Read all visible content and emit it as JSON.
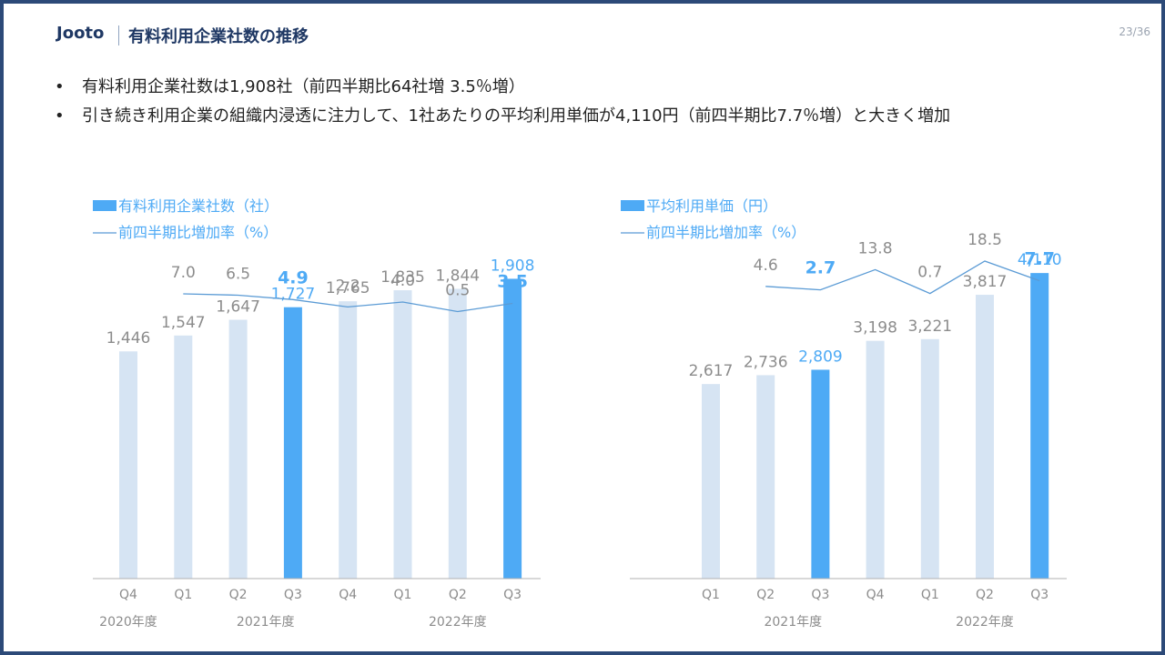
{
  "header": {
    "brand": "Jooto",
    "title": "有料利用企業社数の推移",
    "page": "23/36"
  },
  "bullets": [
    "有料利用企業社数は1,908社（前四半期比64社増 3.5％増）",
    "引き続き利用企業の組織内浸透に注力して、1社あたりの平均利用単価が4,110円（前四半期比7.7％増）と大きく増加"
  ],
  "colors": {
    "bar_light": "#d6e4f3",
    "bar_highlight": "#4eaaf5",
    "line": "#5b9bd5",
    "label_gray": "#8c8c8c",
    "label_highlight": "#4eaaf5",
    "axis": "#b0b0b0"
  },
  "chart_data": [
    {
      "type": "bar",
      "legend": {
        "bar_label": "有料利用企業社数（社）",
        "line_label": "前四半期比増加率（%）",
        "placement": "top-left"
      },
      "categories": [
        "Q4",
        "Q1",
        "Q2",
        "Q3",
        "Q4",
        "Q1",
        "Q2",
        "Q3"
      ],
      "year_groups": [
        {
          "label": "2020年度",
          "start": 0,
          "end": 0
        },
        {
          "label": "2021年度",
          "start": 1,
          "end": 4
        },
        {
          "label": "2022年度",
          "start": 5,
          "end": 7
        }
      ],
      "series": [
        {
          "name": "有料利用企業社数（社）",
          "type": "bar",
          "values": [
            1446,
            1547,
            1647,
            1727,
            1765,
            1835,
            1844,
            1908
          ],
          "labels": [
            "1,446",
            "1,547",
            "1,647",
            "1,727",
            "1,765",
            "1,835",
            "1,844",
            "1,908"
          ],
          "highlight": [
            3,
            7
          ]
        },
        {
          "name": "前四半期比増加率（%）",
          "type": "line",
          "values": [
            null,
            7.0,
            6.5,
            4.9,
            2.2,
            4.0,
            0.5,
            3.5
          ],
          "labels": [
            "",
            "7.0",
            "6.5",
            "4.9",
            "2.2",
            "4.0",
            "0.5",
            "3.5"
          ],
          "highlight": [
            3,
            7
          ]
        }
      ],
      "ylim": [
        0,
        2200
      ],
      "line_ylim": [
        -10,
        10
      ],
      "grid": false
    },
    {
      "type": "bar",
      "legend": {
        "bar_label": "平均利用単価（円）",
        "line_label": "前四半期比増加率（%）",
        "placement": "top-left"
      },
      "categories": [
        "Q1",
        "Q2",
        "Q3",
        "Q4",
        "Q1",
        "Q2",
        "Q3"
      ],
      "year_groups": [
        {
          "label": "2021年度",
          "start": 0,
          "end": 3
        },
        {
          "label": "2022年度",
          "start": 4,
          "end": 6
        }
      ],
      "series": [
        {
          "name": "平均利用単価（円）",
          "type": "bar",
          "values": [
            2617,
            2736,
            2809,
            3198,
            3221,
            3817,
            4110
          ],
          "labels": [
            "2,617",
            "2,736",
            "2,809",
            "3,198",
            "3,221",
            "3,817",
            "4,110"
          ],
          "highlight": [
            2,
            6
          ]
        },
        {
          "name": "前四半期比増加率（%）",
          "type": "line",
          "values": [
            null,
            4.6,
            2.7,
            13.8,
            0.7,
            18.5,
            7.7
          ],
          "labels": [
            "",
            "4.6",
            "2.7",
            "13.8",
            "0.7",
            "18.5",
            "7.7"
          ],
          "highlight": [
            2,
            6
          ]
        }
      ],
      "ylim": [
        0,
        4650
      ],
      "line_ylim": [
        -20,
        20
      ],
      "grid": false
    }
  ]
}
